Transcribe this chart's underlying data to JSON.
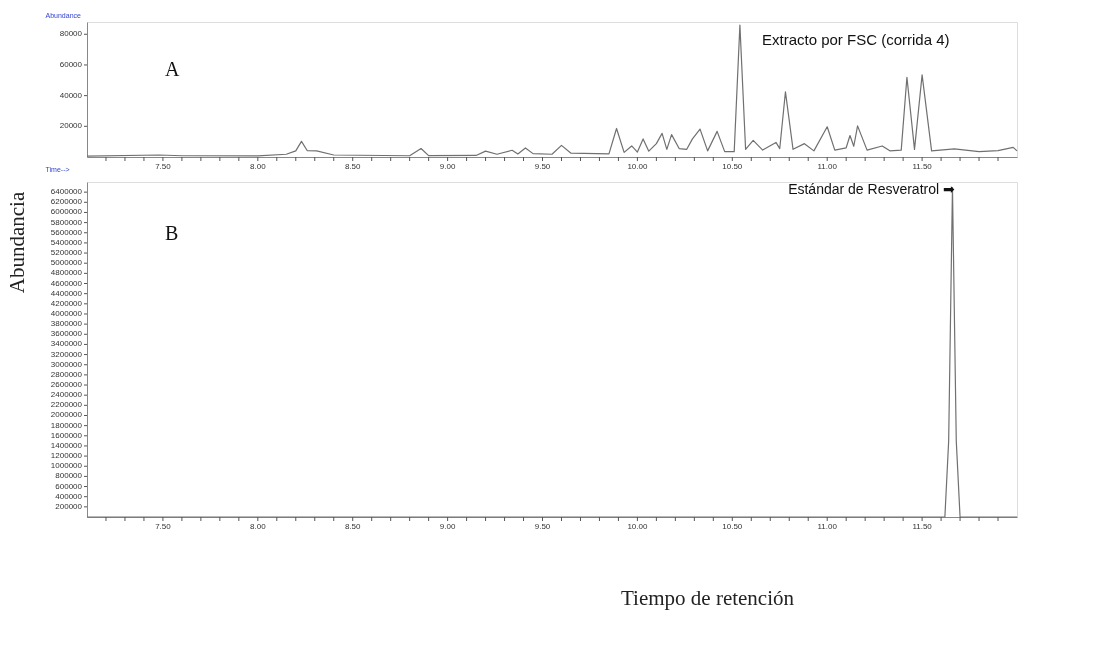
{
  "chart_data": [
    {
      "type": "line",
      "xlabel": "Time-->",
      "ylabel": "Abundance",
      "annotations": [
        "A",
        "Extracto por FSC (corrida 4)"
      ],
      "x": [
        7.1,
        7.48,
        7.6,
        8.0,
        8.15,
        8.2,
        8.23,
        8.26,
        8.31,
        8.4,
        8.8,
        8.86,
        8.9,
        9.15,
        9.2,
        9.26,
        9.34,
        9.37,
        9.41,
        9.45,
        9.55,
        9.6,
        9.65,
        9.85,
        9.89,
        9.93,
        9.97,
        10.0,
        10.03,
        10.06,
        10.1,
        10.13,
        10.155,
        10.18,
        10.22,
        10.26,
        10.29,
        10.33,
        10.37,
        10.42,
        10.46,
        10.51,
        10.54,
        10.57,
        10.61,
        10.66,
        10.73,
        10.75,
        10.78,
        10.82,
        10.88,
        10.93,
        11.0,
        11.04,
        11.1,
        11.12,
        11.14,
        11.16,
        11.21,
        11.29,
        11.33,
        11.39,
        11.42,
        11.46,
        11.5,
        11.55,
        11.67,
        11.8,
        11.9,
        11.98,
        12.0
      ],
      "series": [
        {
          "color": "#707070",
          "values": [
            600,
            1300,
            800,
            700,
            1800,
            4000,
            10200,
            4200,
            4000,
            1300,
            800,
            5500,
            900,
            1000,
            3800,
            1800,
            4400,
            2000,
            5900,
            2200,
            1800,
            7600,
            2500,
            2000,
            18600,
            3000,
            7200,
            3200,
            11800,
            3800,
            8700,
            15400,
            5000,
            14600,
            5500,
            5000,
            11800,
            18200,
            4000,
            16700,
            3500,
            3500,
            86000,
            5000,
            10800,
            4500,
            9500,
            5500,
            42500,
            5000,
            8700,
            4000,
            19700,
            4500,
            6000,
            14000,
            7000,
            20300,
            4500,
            7200,
            4000,
            4500,
            52000,
            5000,
            53500,
            4000,
            5300,
            3500,
            4200,
            6300,
            4000
          ]
        }
      ],
      "xlim": [
        7.1,
        12.0
      ],
      "xticks": [
        {
          "value": 7.2,
          "label": null
        },
        {
          "value": 7.3,
          "label": null
        },
        {
          "value": 7.4,
          "label": null
        },
        {
          "value": 7.5,
          "label": "7.50"
        },
        {
          "value": 7.6,
          "label": null
        },
        {
          "value": 7.7,
          "label": null
        },
        {
          "value": 7.8,
          "label": null
        },
        {
          "value": 7.9,
          "label": null
        },
        {
          "value": 8.0,
          "label": "8.00"
        },
        {
          "value": 8.1,
          "label": null
        },
        {
          "value": 8.2,
          "label": null
        },
        {
          "value": 8.3,
          "label": null
        },
        {
          "value": 8.4,
          "label": null
        },
        {
          "value": 8.5,
          "label": "8.50"
        },
        {
          "value": 8.6,
          "label": null
        },
        {
          "value": 8.7,
          "label": null
        },
        {
          "value": 8.8,
          "label": null
        },
        {
          "value": 8.9,
          "label": null
        },
        {
          "value": 9.0,
          "label": "9.00"
        },
        {
          "value": 9.1,
          "label": null
        },
        {
          "value": 9.2,
          "label": null
        },
        {
          "value": 9.3,
          "label": null
        },
        {
          "value": 9.4,
          "label": null
        },
        {
          "value": 9.5,
          "label": "9.50"
        },
        {
          "value": 9.6,
          "label": null
        },
        {
          "value": 9.7,
          "label": null
        },
        {
          "value": 9.8,
          "label": null
        },
        {
          "value": 9.9,
          "label": null
        },
        {
          "value": 10.0,
          "label": "10.00"
        },
        {
          "value": 10.1,
          "label": null
        },
        {
          "value": 10.2,
          "label": null
        },
        {
          "value": 10.3,
          "label": null
        },
        {
          "value": 10.4,
          "label": null
        },
        {
          "value": 10.5,
          "label": "10.50"
        },
        {
          "value": 10.6,
          "label": null
        },
        {
          "value": 10.7,
          "label": null
        },
        {
          "value": 10.8,
          "label": null
        },
        {
          "value": 10.9,
          "label": null
        },
        {
          "value": 11.0,
          "label": "11.00"
        },
        {
          "value": 11.1,
          "label": null
        },
        {
          "value": 11.2,
          "label": null
        },
        {
          "value": 11.3,
          "label": null
        },
        {
          "value": 11.4,
          "label": null
        },
        {
          "value": 11.5,
          "label": "11.50"
        },
        {
          "value": 11.6,
          "label": null
        },
        {
          "value": 11.7,
          "label": null
        },
        {
          "value": 11.8,
          "label": null
        },
        {
          "value": 11.9,
          "label": null
        }
      ],
      "ylim": [
        0,
        88000
      ],
      "yticks": [
        20000,
        40000,
        60000,
        80000
      ],
      "grid": false,
      "marker": "none",
      "line_style": "solid"
    },
    {
      "type": "line",
      "xlabel": "Tiempo de retención",
      "ylabel": "Abundancia",
      "annotations": [
        "B",
        "Estándar de Resveratrol ➡"
      ],
      "x": [
        7.1,
        11.62,
        11.64,
        11.66,
        11.68,
        11.7,
        12.0
      ],
      "series": [
        {
          "color": "#707070",
          "values": [
            0,
            0,
            1500000,
            6490000,
            1500000,
            0,
            0
          ]
        }
      ],
      "xlim": [
        7.1,
        12.0
      ],
      "xticks": [
        {
          "value": 7.2,
          "label": null
        },
        {
          "value": 7.3,
          "label": null
        },
        {
          "value": 7.4,
          "label": null
        },
        {
          "value": 7.5,
          "label": "7.50"
        },
        {
          "value": 7.6,
          "label": null
        },
        {
          "value": 7.7,
          "label": null
        },
        {
          "value": 7.8,
          "label": null
        },
        {
          "value": 7.9,
          "label": null
        },
        {
          "value": 8.0,
          "label": "8.00"
        },
        {
          "value": 8.1,
          "label": null
        },
        {
          "value": 8.2,
          "label": null
        },
        {
          "value": 8.3,
          "label": null
        },
        {
          "value": 8.4,
          "label": null
        },
        {
          "value": 8.5,
          "label": "8.50"
        },
        {
          "value": 8.6,
          "label": null
        },
        {
          "value": 8.7,
          "label": null
        },
        {
          "value": 8.8,
          "label": null
        },
        {
          "value": 8.9,
          "label": null
        },
        {
          "value": 9.0,
          "label": "9.00"
        },
        {
          "value": 9.1,
          "label": null
        },
        {
          "value": 9.2,
          "label": null
        },
        {
          "value": 9.3,
          "label": null
        },
        {
          "value": 9.4,
          "label": null
        },
        {
          "value": 9.5,
          "label": "9.50"
        },
        {
          "value": 9.6,
          "label": null
        },
        {
          "value": 9.7,
          "label": null
        },
        {
          "value": 9.8,
          "label": null
        },
        {
          "value": 9.9,
          "label": null
        },
        {
          "value": 10.0,
          "label": "10.00"
        },
        {
          "value": 10.1,
          "label": null
        },
        {
          "value": 10.2,
          "label": null
        },
        {
          "value": 10.3,
          "label": null
        },
        {
          "value": 10.4,
          "label": null
        },
        {
          "value": 10.5,
          "label": "10.50"
        },
        {
          "value": 10.6,
          "label": null
        },
        {
          "value": 10.7,
          "label": null
        },
        {
          "value": 10.8,
          "label": null
        },
        {
          "value": 10.9,
          "label": null
        },
        {
          "value": 11.0,
          "label": "11.00"
        },
        {
          "value": 11.1,
          "label": null
        },
        {
          "value": 11.2,
          "label": null
        },
        {
          "value": 11.3,
          "label": null
        },
        {
          "value": 11.4,
          "label": null
        },
        {
          "value": 11.5,
          "label": "11.50"
        },
        {
          "value": 11.6,
          "label": null
        },
        {
          "value": 11.7,
          "label": null
        },
        {
          "value": 11.8,
          "label": null
        },
        {
          "value": 11.9,
          "label": null
        }
      ],
      "ylim": [
        0,
        6600000
      ],
      "yticks": [
        200000,
        400000,
        600000,
        800000,
        1000000,
        1200000,
        1400000,
        1600000,
        1800000,
        2000000,
        2200000,
        2400000,
        2600000,
        2800000,
        3000000,
        3200000,
        3400000,
        3600000,
        3800000,
        4000000,
        4200000,
        4400000,
        4600000,
        4800000,
        5000000,
        5200000,
        5400000,
        5600000,
        5800000,
        6000000,
        6200000,
        6400000
      ],
      "grid": false,
      "marker": "none",
      "line_style": "solid"
    }
  ]
}
